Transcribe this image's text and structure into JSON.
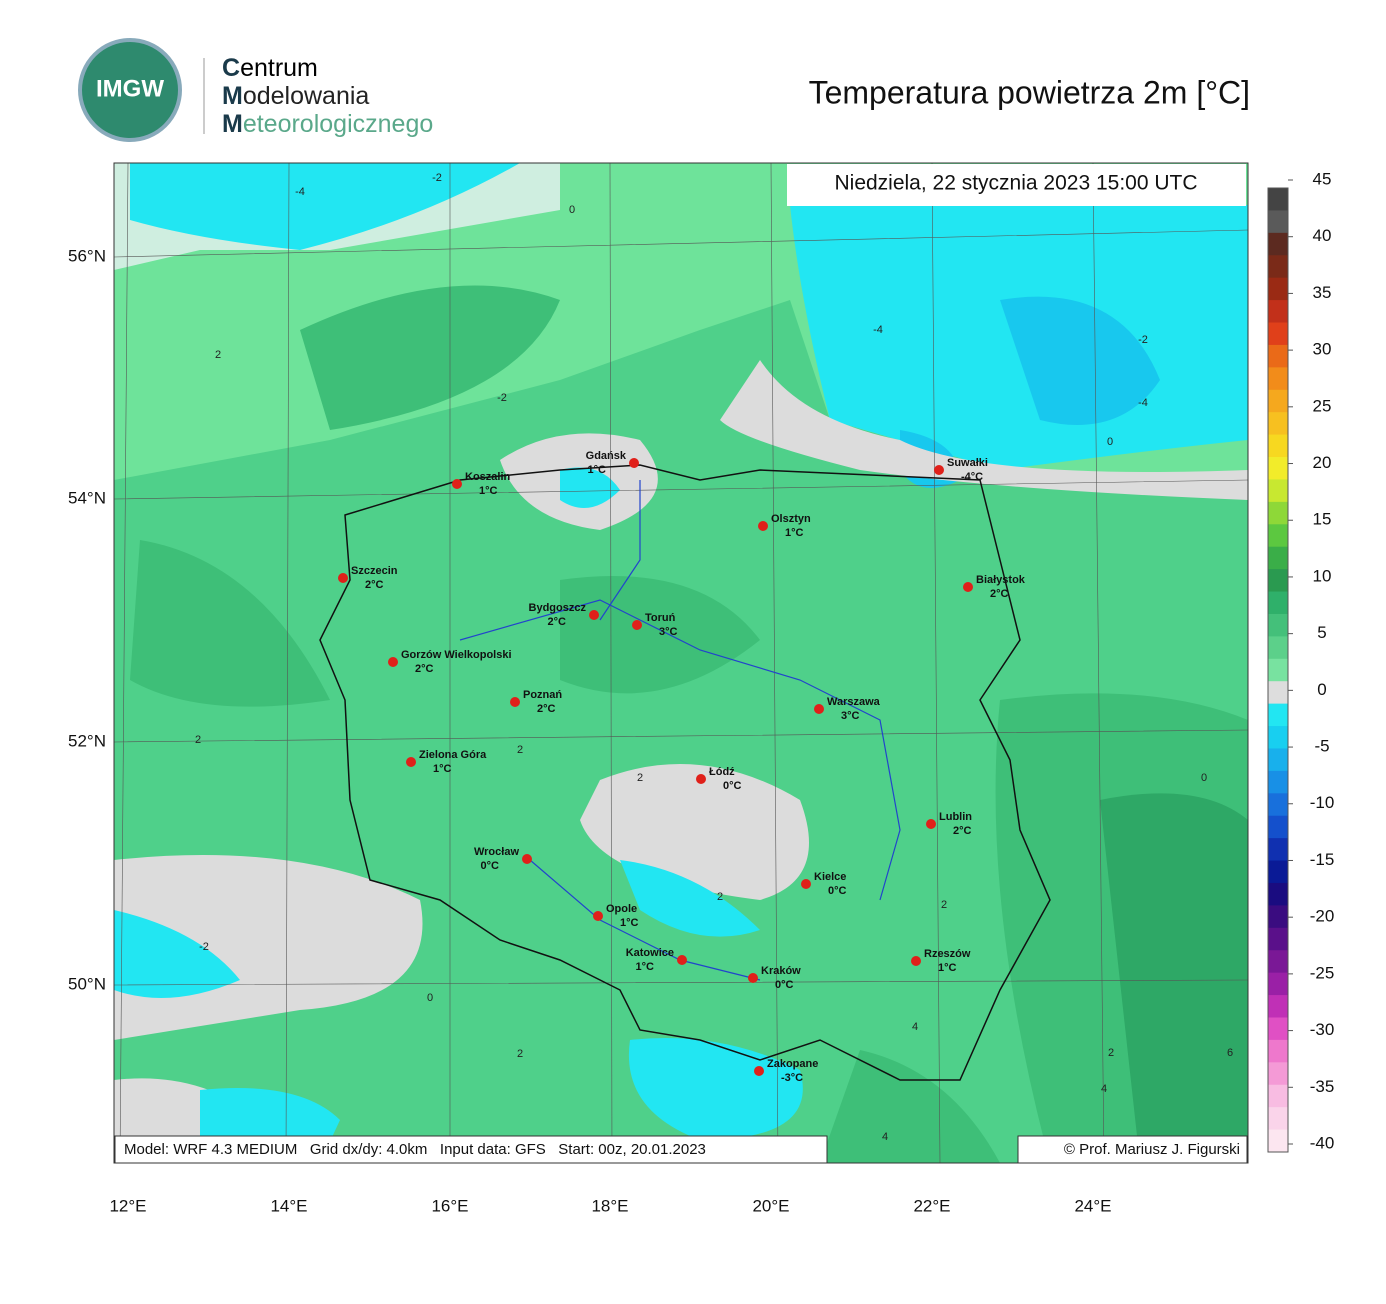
{
  "header": {
    "logo_text": "IMGW",
    "org": [
      "Centrum",
      "Modelowania",
      "Meteorologicznego"
    ],
    "title": "Temperatura powietrza 2m [°C]"
  },
  "map": {
    "date": "Niedziela, 22 stycznia 2023 15:00 UTC",
    "lat_ticks": [
      "56°N",
      "54°N",
      "52°N",
      "50°N"
    ],
    "lon_ticks": [
      "12°E",
      "14°E",
      "16°E",
      "18°E",
      "20°E",
      "22°E",
      "24°E"
    ],
    "cities": [
      {
        "name": "Gdańsk",
        "temp": "1°C"
      },
      {
        "name": "Koszalin",
        "temp": "1°C"
      },
      {
        "name": "Suwałki",
        "temp": "-4°C"
      },
      {
        "name": "Olsztyn",
        "temp": "1°C"
      },
      {
        "name": "Szczecin",
        "temp": "2°C"
      },
      {
        "name": "Białystok",
        "temp": "2°C"
      },
      {
        "name": "Bydgoszcz",
        "temp": "2°C"
      },
      {
        "name": "Toruń",
        "temp": "3°C"
      },
      {
        "name": "Gorzów Wielkopolski",
        "temp": "2°C"
      },
      {
        "name": "Poznań",
        "temp": "2°C"
      },
      {
        "name": "Warszawa",
        "temp": "3°C"
      },
      {
        "name": "Zielona Góra",
        "temp": "1°C"
      },
      {
        "name": "Łódź",
        "temp": "0°C"
      },
      {
        "name": "Lublin",
        "temp": "2°C"
      },
      {
        "name": "Wrocław",
        "temp": "0°C"
      },
      {
        "name": "Kielce",
        "temp": "0°C"
      },
      {
        "name": "Opole",
        "temp": "1°C"
      },
      {
        "name": "Katowice",
        "temp": "1°C"
      },
      {
        "name": "Rzeszów",
        "temp": "1°C"
      },
      {
        "name": "Kraków",
        "temp": "0°C"
      },
      {
        "name": "Zakopane",
        "temp": "-3°C"
      }
    ],
    "contour_labels": [
      "-4",
      "-2",
      "0",
      "2",
      "-2",
      "-4",
      "-2",
      "0",
      "2",
      "2",
      "2",
      "2",
      "0",
      "-2",
      "2",
      "0",
      "4",
      "2",
      "6",
      "4",
      "-4",
      "2",
      "4"
    ],
    "footer_left": "Model: WRF 4.3 MEDIUM   Grid dx/dy: 4.0km   Input data: GFS   Start: 00z, 20.01.2023",
    "footer_right": "© Prof. Mariusz J. Figurski"
  },
  "colorbar": {
    "ticks": [
      45,
      40,
      35,
      30,
      25,
      20,
      15,
      10,
      5,
      0,
      -5,
      -10,
      -15,
      -20,
      -25,
      -30,
      -35,
      -40
    ],
    "colors": [
      "#444444",
      "#5a5a5a",
      "#5c2a20",
      "#7a2a18",
      "#9a2a14",
      "#c2301a",
      "#e0401a",
      "#ea6a18",
      "#f28c1a",
      "#f5a81e",
      "#f7c020",
      "#f7d820",
      "#f2ec2a",
      "#c8e830",
      "#8ed838",
      "#5cc840",
      "#3aae48",
      "#2a9a50",
      "#2fb06a",
      "#44c07a",
      "#5cd08a",
      "#78e2a0",
      "#dddddd",
      "#22e6f2",
      "#18cff0",
      "#18b0ec",
      "#1890e6",
      "#1870dc",
      "#1450cc",
      "#1030b0",
      "#0a1a96",
      "#1a0c80",
      "#3a0c80",
      "#5a108a",
      "#7a1896",
      "#9a20a6",
      "#c030b6",
      "#e050c4",
      "#ee78cc",
      "#f49ad6",
      "#f8bce2",
      "#fad4ea",
      "#fce6f0"
    ]
  }
}
